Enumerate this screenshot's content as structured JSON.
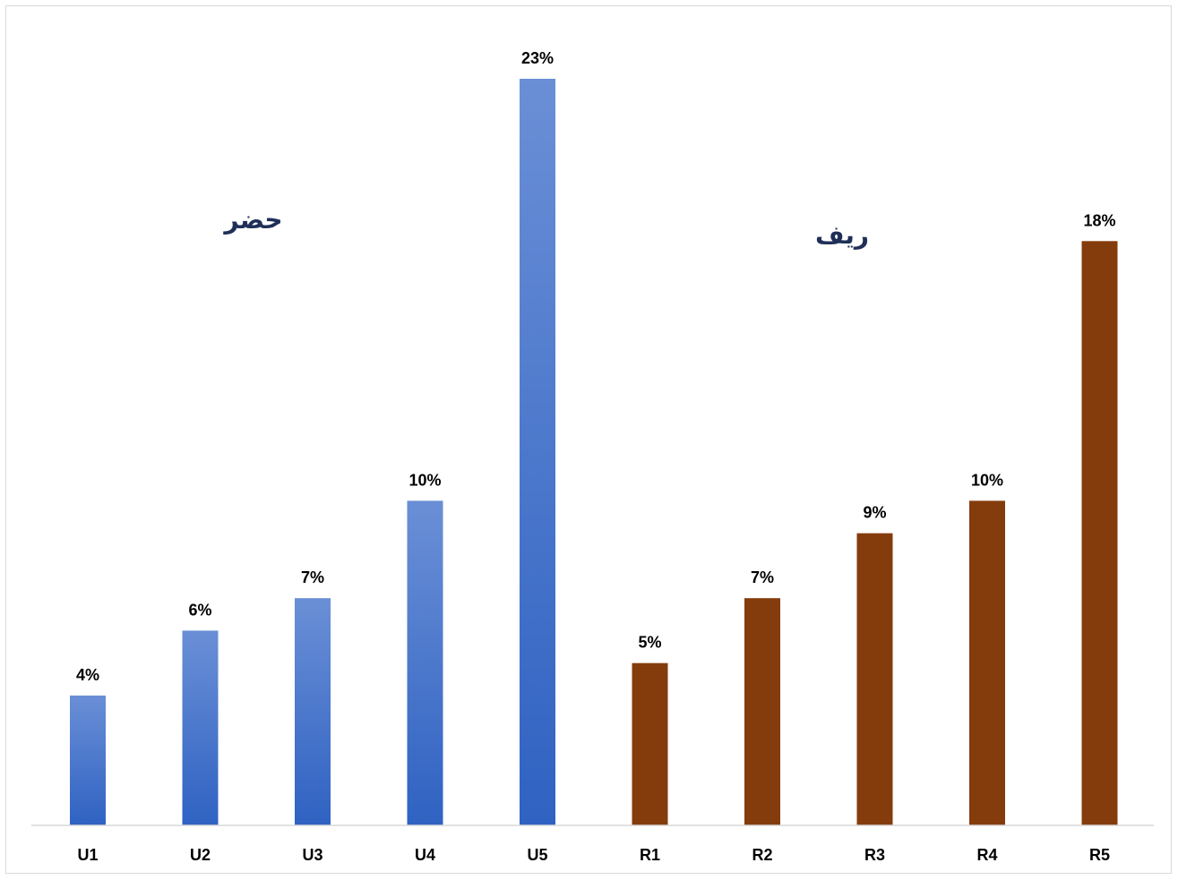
{
  "chart_data": {
    "type": "bar",
    "categories": [
      "U1",
      "U2",
      "U3",
      "U4",
      "U5",
      "R1",
      "R2",
      "R3",
      "R4",
      "R5"
    ],
    "values": [
      4,
      6,
      7,
      10,
      23,
      5,
      7,
      9,
      10,
      18
    ],
    "value_labels": [
      "4%",
      "6%",
      "7%",
      "10%",
      "23%",
      "5%",
      "7%",
      "9%",
      "10%",
      "18%"
    ],
    "groups": [
      {
        "label": "حضر",
        "categories": [
          "U1",
          "U2",
          "U3",
          "U4",
          "U5"
        ],
        "color": "#4472c4",
        "color_dark": "#2f5fbf"
      },
      {
        "label": "ريف",
        "categories": [
          "R1",
          "R2",
          "R3",
          "R4",
          "R5"
        ],
        "color": "#843c0c"
      }
    ],
    "title": "",
    "xlabel": "",
    "ylabel": "",
    "ylim": [
      0,
      23
    ],
    "grid": false,
    "legend": "none"
  }
}
